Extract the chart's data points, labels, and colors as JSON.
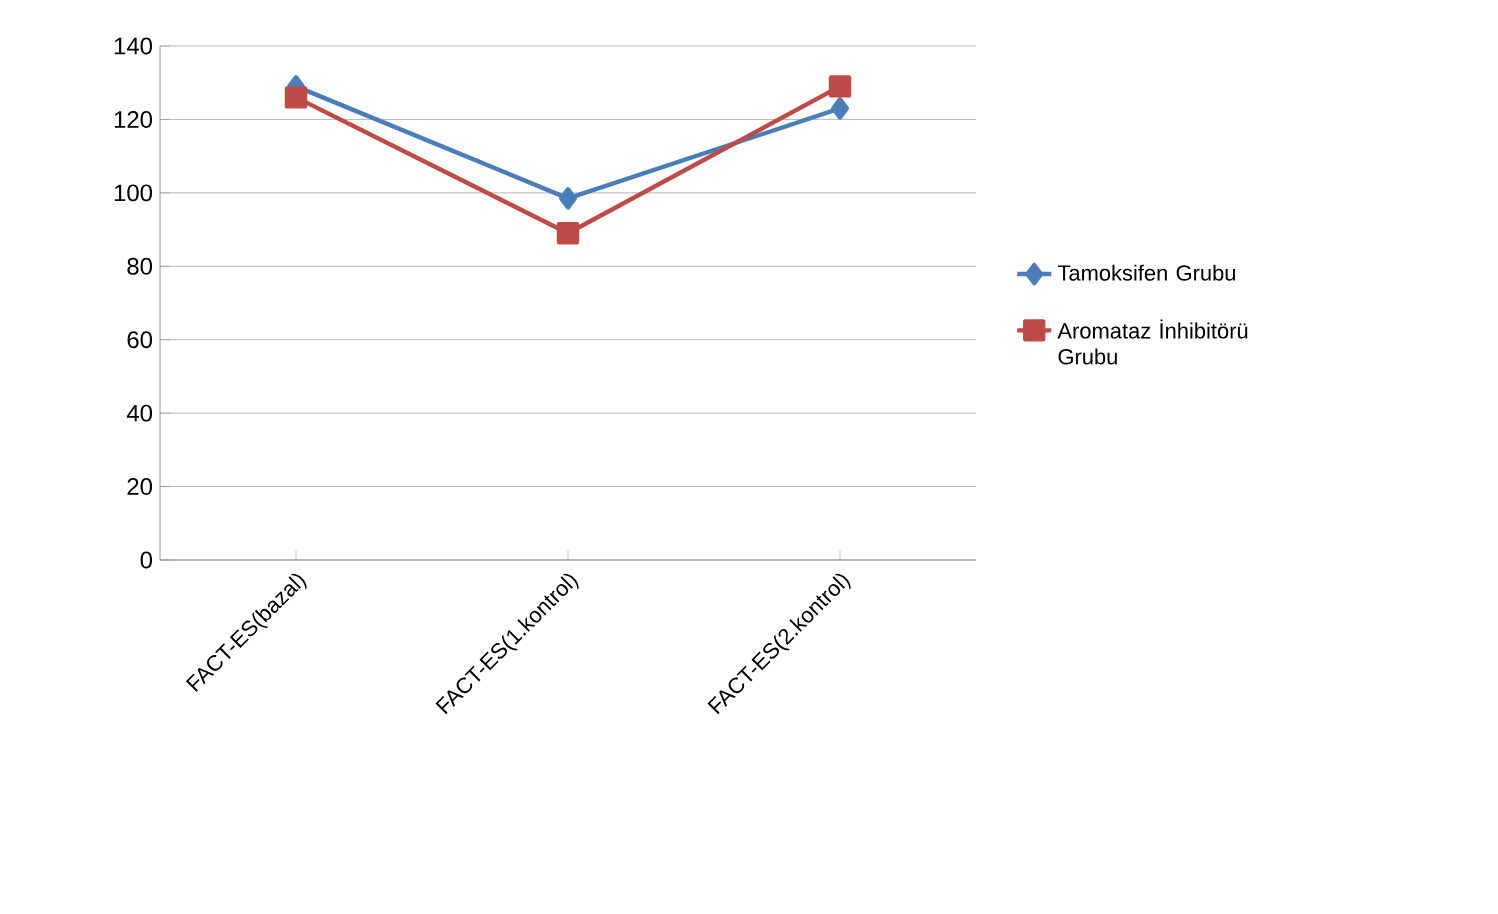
{
  "chart_data": {
    "type": "line",
    "categories": [
      "FACT-ES(bazal)",
      "FACT-ES(1.kontrol)",
      "FACT-ES(2.kontrol)"
    ],
    "series": [
      {
        "name": "Tamoksifen Grubu",
        "color": "#4a7ebb",
        "marker": "diamond",
        "values": [
          129,
          98.5,
          123
        ]
      },
      {
        "name": "Aromataz İnhibitörü Grubu",
        "color": "#be4b48",
        "marker": "square",
        "values": [
          126,
          89,
          129
        ]
      }
    ],
    "ylim": [
      0,
      140
    ],
    "yticks": [
      0,
      20,
      40,
      60,
      80,
      100,
      120,
      140
    ],
    "grid": "y",
    "legend": "right",
    "line_style": "solid"
  }
}
